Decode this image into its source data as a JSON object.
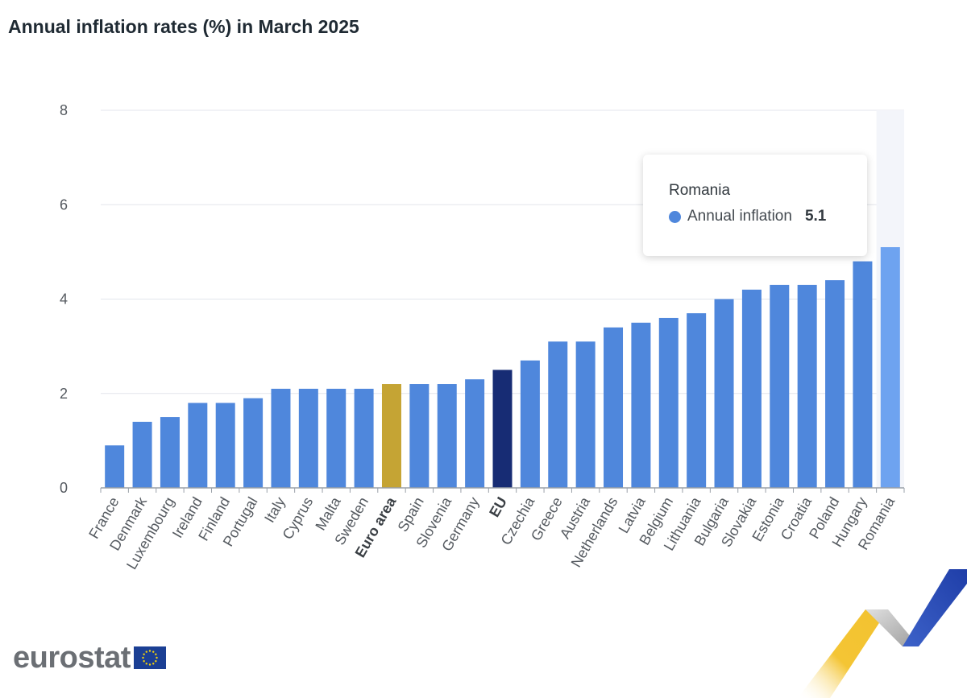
{
  "title": "Annual inflation rates (%) in March 2025",
  "colors": {
    "bar": "#4f87dc",
    "euro_area": "#c5a434",
    "eu": "#172c74",
    "highlight": "#6ea3f0",
    "grid": "#e3e6ec"
  },
  "chart_data": {
    "type": "bar",
    "title": "Annual inflation rates (%) in March 2025",
    "xlabel": "",
    "ylabel": "",
    "ylim": [
      0,
      8
    ],
    "yticks": [
      0,
      2,
      4,
      6,
      8
    ],
    "grid": true,
    "categories": [
      "France",
      "Denmark",
      "Luxembourg",
      "Ireland",
      "Finland",
      "Portugal",
      "Italy",
      "Cyprus",
      "Malta",
      "Sweden",
      "Euro area",
      "Spain",
      "Slovenia",
      "Germany",
      "EU",
      "Czechia",
      "Greece",
      "Austria",
      "Netherlands",
      "Latvia",
      "Belgium",
      "Lithuania",
      "Bulgaria",
      "Slovakia",
      "Estonia",
      "Croatia",
      "Poland",
      "Hungary",
      "Romania"
    ],
    "series": [
      {
        "name": "Annual inflation",
        "values": [
          0.9,
          1.4,
          1.5,
          1.8,
          1.8,
          1.9,
          2.1,
          2.1,
          2.1,
          2.1,
          2.2,
          2.2,
          2.2,
          2.3,
          2.5,
          2.7,
          3.1,
          3.1,
          3.4,
          3.5,
          3.6,
          3.7,
          4.0,
          4.2,
          4.3,
          4.3,
          4.4,
          4.8,
          5.1
        ]
      }
    ],
    "bold_categories": [
      "Euro area",
      "EU"
    ],
    "highlighted_category": "Romania"
  },
  "tooltip": {
    "title": "Romania",
    "series_name": "Annual inflation",
    "value": "5.1"
  },
  "logo": {
    "text": "eurostat",
    "flag_icon": "eu-flag-icon"
  },
  "decoration": {
    "icon": "ribbon-decoration-icon"
  }
}
